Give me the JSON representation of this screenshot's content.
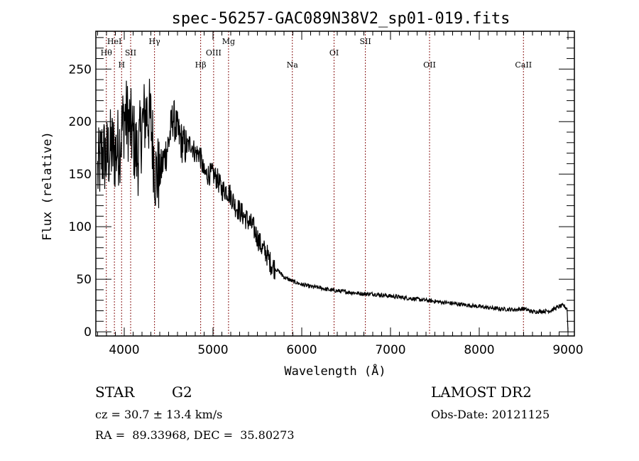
{
  "chart_data": {
    "type": "line",
    "title": "spec-56257-GAC089N38V2_sp01-019.fits",
    "xlabel": "Wavelength (Å)",
    "ylabel": "Flux (relative)",
    "xlim": [
      3680,
      9072
    ],
    "ylim": [
      -4,
      286
    ],
    "x_ticks": [
      4000,
      5000,
      6000,
      7000,
      8000,
      9000
    ],
    "x_tick_labels": [
      "4000",
      "5000",
      "6000",
      "7000",
      "8000",
      "9000"
    ],
    "x_minor_step": 100,
    "y_ticks": [
      0,
      50,
      100,
      150,
      200,
      250
    ],
    "y_tick_labels": [
      "0",
      "50",
      "100",
      "150",
      "200",
      "250"
    ],
    "y_minor_step": 10,
    "grid": false,
    "line_color": "#000000",
    "marker_line_color": "#8b1a1a",
    "spectral_lines": [
      {
        "name": "Hθ",
        "wavelength": 3798,
        "row": 2
      },
      {
        "name": "HeI",
        "wavelength": 3889,
        "row": 1
      },
      {
        "name": "H",
        "wavelength": 3970,
        "row": 3
      },
      {
        "name": "SII",
        "wavelength": 4072,
        "row": 2
      },
      {
        "name": "Hγ",
        "wavelength": 4341,
        "row": 1
      },
      {
        "name": "Hβ",
        "wavelength": 4861,
        "row": 3
      },
      {
        "name": "OIII",
        "wavelength": 5007,
        "row": 2
      },
      {
        "name": "Mg",
        "wavelength": 5175,
        "row": 1
      },
      {
        "name": "Na",
        "wavelength": 5894,
        "row": 3
      },
      {
        "name": "OI",
        "wavelength": 6364,
        "row": 2
      },
      {
        "name": "SII",
        "wavelength": 6717,
        "row": 1
      },
      {
        "name": "OII",
        "wavelength": 7440,
        "row": 3
      },
      {
        "name": "CaII",
        "wavelength": 8498,
        "row": 3
      }
    ],
    "spectrum_envelope": {
      "x": [
        3700,
        3750,
        3800,
        3850,
        3900,
        3950,
        4000,
        4050,
        4100,
        4150,
        4200,
        4250,
        4300,
        4350,
        4400,
        4450,
        4500,
        4550,
        4600,
        4650,
        4700,
        4750,
        4800,
        4850,
        4900,
        4950,
        5000,
        5050,
        5100,
        5150,
        5200,
        5250,
        5300,
        5350,
        5400,
        5450,
        5500,
        5550,
        5600,
        5650,
        5700,
        5750,
        5800,
        5850,
        5900,
        6000,
        6100,
        6200,
        6300,
        6400,
        6500,
        6600,
        6700,
        6800,
        6900,
        7000,
        7200,
        7400,
        7600,
        7800,
        8000,
        8200,
        8400,
        8500,
        8600,
        8800,
        8900,
        8950,
        8990,
        9000
      ],
      "y": [
        150,
        170,
        165,
        175,
        170,
        180,
        205,
        200,
        185,
        165,
        195,
        210,
        200,
        150,
        150,
        165,
        180,
        205,
        190,
        180,
        175,
        180,
        170,
        170,
        150,
        150,
        150,
        145,
        135,
        135,
        130,
        120,
        115,
        110,
        105,
        100,
        90,
        80,
        75,
        65,
        60,
        57,
        52,
        50,
        48,
        45,
        43,
        42,
        40,
        39,
        38,
        37,
        36,
        36,
        35,
        34,
        32,
        30,
        28,
        26,
        24,
        22,
        21,
        22,
        19,
        20,
        24,
        25,
        22,
        0
      ]
    }
  },
  "info": {
    "object_class": "STAR",
    "subclass": "G2",
    "survey": "LAMOST DR2",
    "redshift": "cz = 30.7 ± 13.4 km/s",
    "obs_date": "Obs-Date: 20121125",
    "coords": "RA =  89.33968, DEC =  35.80273"
  }
}
